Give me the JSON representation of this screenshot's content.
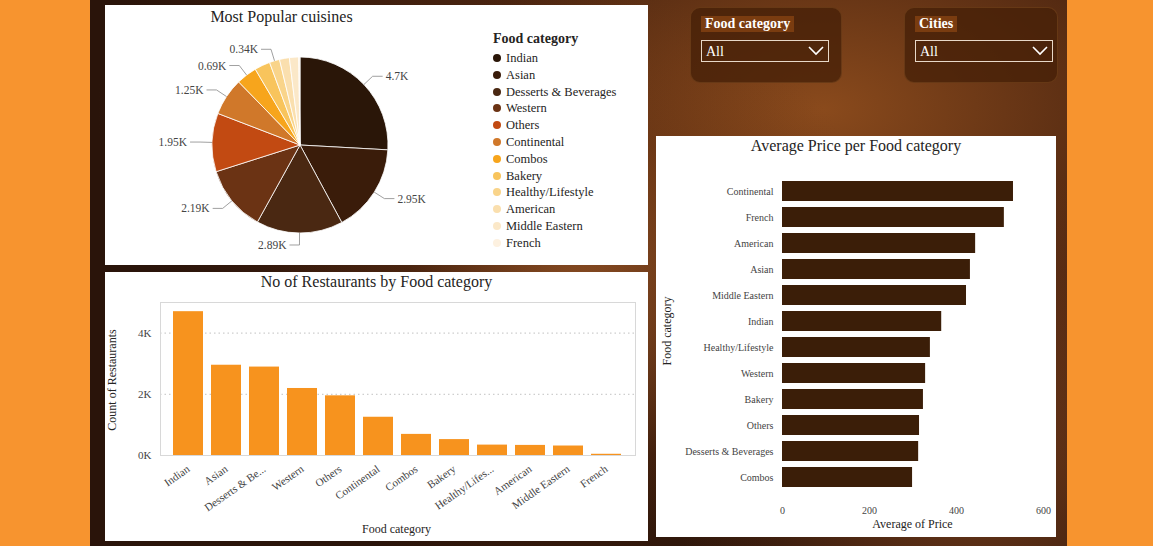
{
  "filters": [
    {
      "label": "Food category",
      "value": "All"
    },
    {
      "label": "Cities",
      "value": "All"
    }
  ],
  "chart_data": [
    {
      "type": "pie",
      "title": "Most Popular cuisines",
      "legend_title": "Food category",
      "legend": "right",
      "categories": [
        "Indian",
        "Asian",
        "Desserts & Beverages",
        "Western",
        "Others",
        "Continental",
        "Combos",
        "Bakery",
        "Healthy/Lifestyle",
        "American",
        "Middle Eastern",
        "French"
      ],
      "values": [
        4700,
        2950,
        2890,
        2190,
        1950,
        1250,
        690,
        520,
        340,
        330,
        310,
        40
      ],
      "colors": [
        "#2a1608",
        "#3a1c0a",
        "#4a2812",
        "#6b3314",
        "#c24a12",
        "#d0782a",
        "#f7a51c",
        "#f8c45c",
        "#f9d48a",
        "#fadfae",
        "#fbe8c8",
        "#fdf1e0"
      ],
      "data_labels": true,
      "value_labels": [
        "4.7K",
        "2.95K",
        "2.89K",
        "2.19K",
        "1.95K",
        "1.25K",
        "0.69K",
        null,
        "0.34K",
        null,
        null,
        null
      ]
    },
    {
      "type": "bar",
      "title": "No of Restaurants by Food category",
      "x_label": "Food category",
      "y_label": "Count of Restaurants",
      "categories": [
        "Indian",
        "Asian",
        "Desserts & Be...",
        "Western",
        "Others",
        "Continental",
        "Combos",
        "Bakery",
        "Healthy/Lifes...",
        "American",
        "Middle Eastern",
        "French"
      ],
      "values": [
        4700,
        2950,
        2890,
        2190,
        1950,
        1250,
        690,
        520,
        340,
        330,
        310,
        40
      ],
      "color": "#f7931e",
      "ylim": [
        0,
        5000
      ],
      "yticks": [
        {
          "value": 0,
          "label": "0K"
        },
        {
          "value": 2000,
          "label": "2K"
        },
        {
          "value": 4000,
          "label": "4K"
        }
      ],
      "grid": true
    },
    {
      "type": "bar",
      "orientation": "horizontal",
      "title": "Average Price per Food category",
      "x_label": "Average of Price",
      "y_label": "Food category",
      "categories": [
        "Continental",
        "French",
        "American",
        "Asian",
        "Middle Eastern",
        "Indian",
        "Healthy/Lifestyle",
        "Western",
        "Bakery",
        "Others",
        "Desserts & Beverages",
        "Combos"
      ],
      "values": [
        531,
        510,
        444,
        432,
        423,
        366,
        340,
        329,
        324,
        315,
        313,
        299
      ],
      "color": "#3b1e08",
      "xlim": [
        0,
        600
      ],
      "xticks": [
        0,
        200,
        400,
        600
      ]
    }
  ]
}
